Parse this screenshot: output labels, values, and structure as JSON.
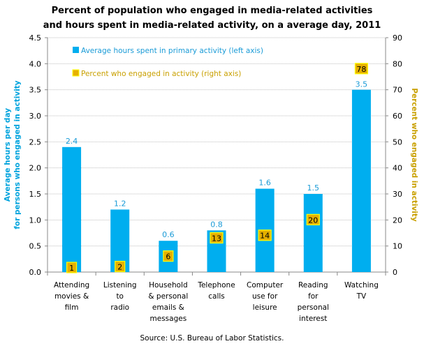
{
  "chart_data": {
    "type": "bar",
    "title": [
      "Percent of population who engaged in media-related activities",
      "and hours spent in media-related activity, on a average day, 2011"
    ],
    "categories": [
      [
        "Attending",
        "movies &",
        "film"
      ],
      [
        "Listening",
        "to",
        "radio"
      ],
      [
        "Household",
        "& personal",
        "emails &",
        "messages"
      ],
      [
        "Telephone",
        "calls"
      ],
      [
        "Computer",
        "use for",
        "leisure"
      ],
      [
        "Reading",
        "for",
        "personal",
        "interest"
      ],
      [
        "Watching",
        "TV"
      ]
    ],
    "series": [
      {
        "name": "Average hours spent in primary activity (left axis)",
        "axis": "left",
        "color": "#00AEEF",
        "values": [
          2.4,
          1.2,
          0.6,
          0.8,
          1.6,
          1.5,
          3.5
        ],
        "labels": [
          "2.4",
          "1.2",
          "0.6",
          "0.8",
          "1.6",
          "1.5",
          "3.5"
        ]
      },
      {
        "name": "Percent who engaged in activity (right axis)",
        "axis": "right",
        "color": "#E6B000",
        "values": [
          1,
          2,
          6,
          13,
          14,
          20,
          78
        ],
        "labels": [
          "1",
          "2",
          "6",
          "13",
          "14",
          "20",
          "78"
        ]
      }
    ],
    "ylabel_left": [
      "Average hours per day",
      "for persons who engaged in activity"
    ],
    "ylabel_right": "Percent who engaged in activity",
    "ylim_left": [
      0,
      4.5
    ],
    "ylim_right": [
      0,
      90
    ],
    "yticks_left": [
      "0.0",
      "0.5",
      "1.0",
      "1.5",
      "2.0",
      "2.5",
      "3.0",
      "3.5",
      "4.0",
      "4.5"
    ],
    "yticks_right": [
      "0",
      "10",
      "20",
      "30",
      "40",
      "50",
      "60",
      "70",
      "80",
      "90"
    ],
    "grid": true,
    "legend_position": "top-left",
    "source": "Source: U.S. Bureau of Labor Statistics."
  }
}
